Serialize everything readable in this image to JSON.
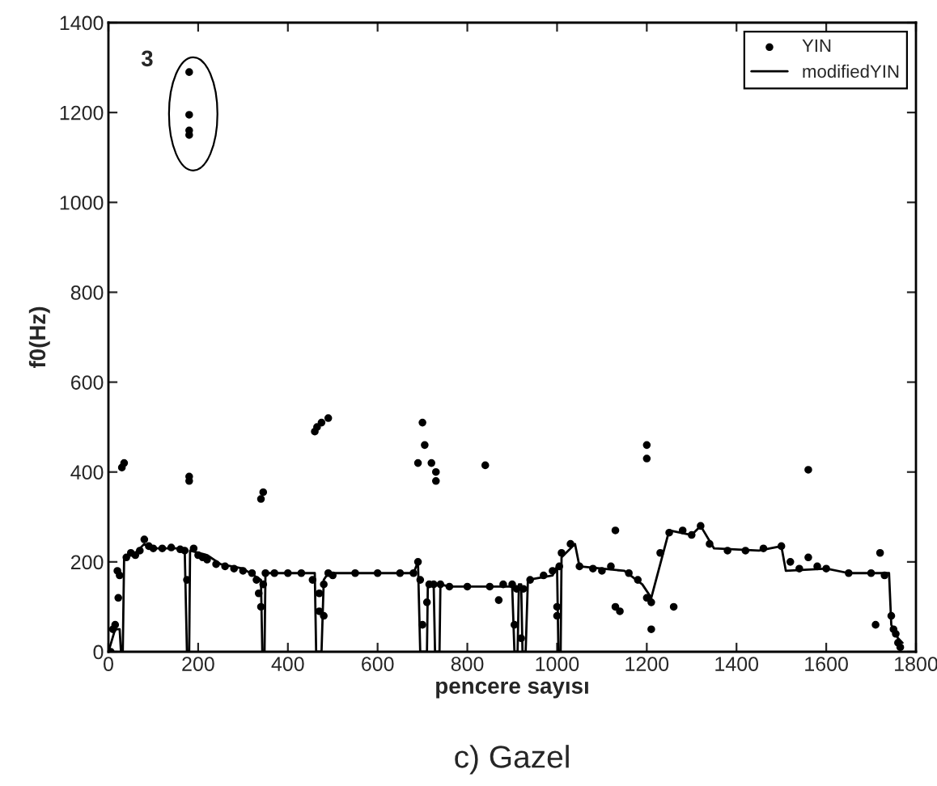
{
  "chart_data": {
    "type": "scatter",
    "title": "c) Gazel",
    "xlabel": "pencere sayısı",
    "ylabel": "f0(Hz)",
    "xlim": [
      0,
      1800
    ],
    "ylim": [
      0,
      1400
    ],
    "xticks": [
      0,
      200,
      400,
      600,
      800,
      1000,
      1200,
      1400,
      1600,
      1800
    ],
    "yticks": [
      0,
      200,
      400,
      600,
      800,
      1000,
      1200,
      1400
    ],
    "grid": false,
    "legend": "top right",
    "annotations": [
      "3"
    ],
    "series": [
      {
        "name": "YIN",
        "type": "scatter",
        "marker": "circle",
        "color": "#000000",
        "x": [
          5,
          10,
          15,
          20,
          22,
          25,
          30,
          35,
          40,
          50,
          60,
          70,
          80,
          90,
          100,
          120,
          140,
          160,
          170,
          175,
          180,
          180,
          180,
          180,
          180,
          180,
          190,
          200,
          210,
          220,
          240,
          260,
          280,
          300,
          320,
          330,
          335,
          340,
          340,
          345,
          345,
          350,
          370,
          400,
          430,
          455,
          460,
          465,
          470,
          470,
          475,
          480,
          480,
          490,
          490,
          500,
          550,
          600,
          650,
          680,
          690,
          690,
          695,
          700,
          700,
          705,
          710,
          715,
          720,
          725,
          730,
          730,
          740,
          760,
          800,
          840,
          850,
          870,
          880,
          900,
          905,
          910,
          920,
          925,
          940,
          970,
          990,
          1000,
          1000,
          1005,
          1010,
          1030,
          1050,
          1080,
          1100,
          1120,
          1130,
          1130,
          1140,
          1160,
          1180,
          1200,
          1200,
          1200,
          1210,
          1210,
          1230,
          1250,
          1260,
          1280,
          1300,
          1320,
          1340,
          1380,
          1420,
          1460,
          1500,
          1520,
          1540,
          1560,
          1560,
          1580,
          1600,
          1650,
          1700,
          1710,
          1720,
          1730,
          1745,
          1750,
          1755,
          1760,
          1765
        ],
        "values": [
          0,
          50,
          60,
          180,
          120,
          170,
          410,
          420,
          210,
          220,
          215,
          225,
          250,
          235,
          230,
          230,
          232,
          228,
          225,
          160,
          380,
          390,
          1290,
          1195,
          1160,
          1150,
          230,
          215,
          210,
          205,
          195,
          190,
          185,
          180,
          175,
          160,
          130,
          100,
          340,
          355,
          150,
          175,
          175,
          175,
          175,
          160,
          490,
          500,
          130,
          90,
          510,
          80,
          150,
          520,
          175,
          170,
          175,
          175,
          175,
          175,
          200,
          420,
          160,
          510,
          60,
          460,
          110,
          150,
          420,
          150,
          380,
          400,
          150,
          145,
          145,
          415,
          145,
          115,
          150,
          150,
          60,
          140,
          30,
          140,
          160,
          170,
          180,
          100,
          80,
          190,
          220,
          240,
          190,
          185,
          180,
          190,
          270,
          100,
          90,
          175,
          160,
          460,
          430,
          120,
          50,
          110,
          220,
          265,
          100,
          270,
          260,
          280,
          240,
          225,
          225,
          230,
          235,
          200,
          185,
          405,
          210,
          190,
          185,
          175,
          175,
          60,
          220,
          170,
          80,
          50,
          40,
          20,
          10
        ]
      },
      {
        "name": "modifiedYIN",
        "type": "line",
        "marker": "none",
        "line_style": "solid",
        "color": "#000000",
        "x": [
          0,
          15,
          25,
          28,
          32,
          35,
          60,
          80,
          100,
          170,
          175,
          180,
          182,
          220,
          250,
          300,
          340,
          343,
          348,
          350,
          460,
          463,
          475,
          480,
          490,
          680,
          690,
          695,
          710,
          712,
          725,
          728,
          738,
          740,
          760,
          900,
          905,
          912,
          915,
          920,
          923,
          930,
          935,
          990,
          1000,
          1003,
          1008,
          1010,
          1040,
          1050,
          1100,
          1150,
          1190,
          1210,
          1250,
          1300,
          1320,
          1350,
          1450,
          1500,
          1510,
          1600,
          1650,
          1740,
          1745,
          1760,
          1770
        ],
        "values": [
          0,
          50,
          50,
          0,
          0,
          210,
          220,
          240,
          230,
          230,
          0,
          0,
          225,
          215,
          195,
          185,
          160,
          0,
          0,
          175,
          175,
          0,
          0,
          160,
          175,
          175,
          200,
          0,
          0,
          150,
          150,
          0,
          0,
          150,
          145,
          145,
          0,
          0,
          150,
          150,
          0,
          0,
          160,
          170,
          190,
          0,
          0,
          210,
          240,
          190,
          185,
          180,
          150,
          120,
          270,
          260,
          280,
          230,
          225,
          235,
          180,
          185,
          175,
          175,
          60,
          30,
          20
        ]
      }
    ]
  }
}
